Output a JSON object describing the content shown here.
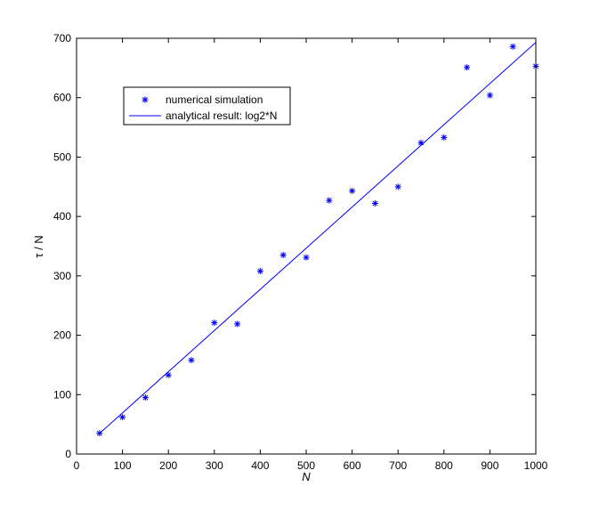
{
  "chart_data": {
    "type": "scatter",
    "xlabel": "N",
    "ylabel": "τ / N",
    "xlim": [
      0,
      1000
    ],
    "ylim": [
      0,
      700
    ],
    "xticks": [
      0,
      100,
      200,
      300,
      400,
      500,
      600,
      700,
      800,
      900,
      1000
    ],
    "yticks": [
      0,
      100,
      200,
      300,
      400,
      500,
      600,
      700
    ],
    "grid": false,
    "legend_position": "upper-left",
    "series": [
      {
        "name": "numerical simulation",
        "kind": "markers",
        "marker": "asterisk",
        "color": "#0000ff",
        "x": [
          50,
          100,
          150,
          200,
          250,
          300,
          350,
          400,
          450,
          500,
          550,
          600,
          650,
          700,
          750,
          800,
          850,
          900,
          950,
          1000
        ],
        "y": [
          35,
          62,
          95,
          133,
          158,
          221,
          219,
          308,
          335,
          331,
          427,
          443,
          422,
          450,
          524,
          533,
          651,
          604,
          686,
          653
        ]
      },
      {
        "name": "analytical result: log2*N",
        "kind": "line",
        "color": "#0000ff",
        "x": [
          50,
          1000
        ],
        "y": [
          34.7,
          693.1
        ]
      }
    ]
  }
}
